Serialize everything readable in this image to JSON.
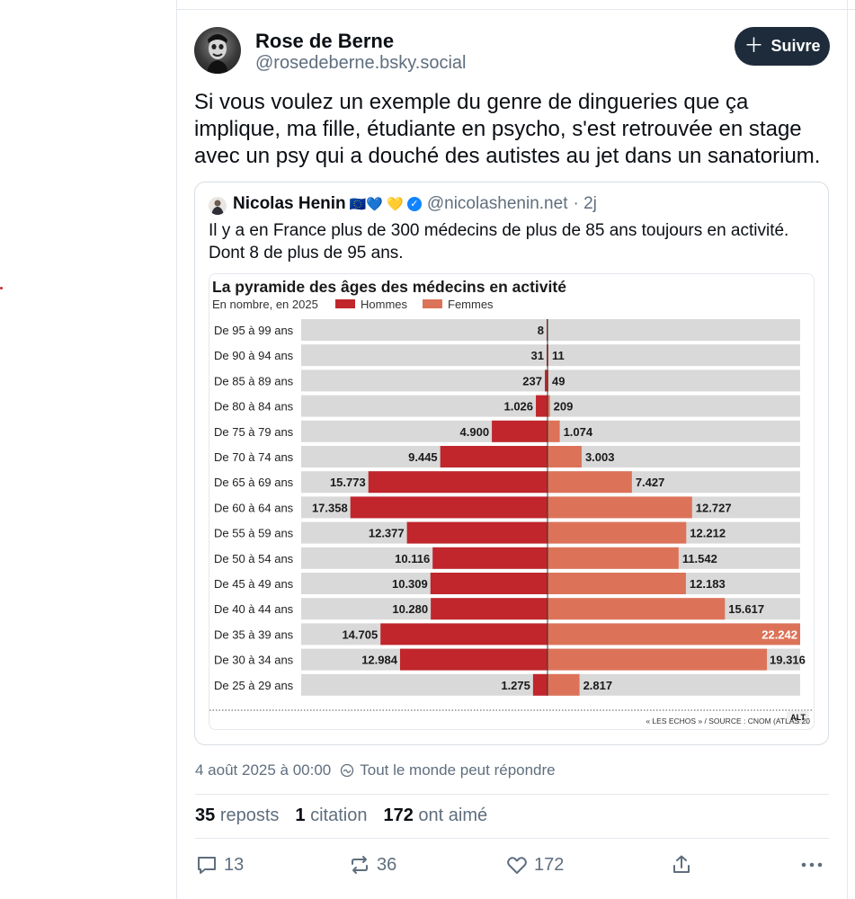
{
  "author": {
    "name": "Rose de Berne",
    "handle": "@rosedeberne.bsky.social",
    "avatar_icon": "avatar-photo"
  },
  "follow_button": {
    "label": "Suivre",
    "icon": "plus-icon"
  },
  "post_text": "Si vous voulez un exemple du genre de dingueries que ça implique, ma fille, étudiante en psycho, s'est retrouvée en stage avec un psy qui a douché des autistes au jet dans un sanatorium.",
  "quote": {
    "name": "Nicolas Henin",
    "emojis": "🇪🇺💙 💛",
    "handle": "@nicolashenin.net",
    "time": "· 2j",
    "text": "Il y a en France plus de 300 médecins de plus de 85 ans toujours en activité. Dont 8 de plus de 95 ans.",
    "alt_badge": "ALT"
  },
  "chart_data": {
    "type": "bar",
    "orientation": "horizontal-pyramid",
    "title": "La pyramide des âges des médecins en activité",
    "subtitle": "En nombre, en 2025",
    "source": "« LES ECHOS » / SOURCE : CNOM (ATLAS 20",
    "categories": [
      "De 95 à 99 ans",
      "De 90 à 94 ans",
      "De 85 à 89 ans",
      "De 80 à 84 ans",
      "De 75 à 79 ans",
      "De 70 à 74 ans",
      "De 65 à 69 ans",
      "De 60 à 64 ans",
      "De 55 à 59 ans",
      "De 50 à 54 ans",
      "De 45 à 49 ans",
      "De 40 à 44 ans",
      "De 35 à 39 ans",
      "De 30 à 34 ans",
      "De 25 à 29 ans"
    ],
    "series": [
      {
        "name": "Hommes",
        "color": "#c0262c",
        "values": [
          8,
          31,
          237,
          1026,
          4900,
          9445,
          15773,
          17358,
          12377,
          10116,
          10309,
          10280,
          14705,
          12984,
          1275
        ],
        "labels": [
          "8",
          "31",
          "237",
          "1.026",
          "4.900",
          "9.445",
          "15.773",
          "17.358",
          "12.377",
          "10.116",
          "10.309",
          "10.280",
          "14.705",
          "12.984",
          "1.275"
        ]
      },
      {
        "name": "Femmes",
        "color": "#dc7359",
        "values": [
          0,
          11,
          49,
          209,
          1074,
          3003,
          7427,
          12727,
          12212,
          11542,
          12183,
          15617,
          22242,
          19316,
          2817
        ],
        "labels": [
          "",
          "11",
          "49",
          "209",
          "1.074",
          "3.003",
          "7.427",
          "12.727",
          "12.212",
          "11.542",
          "12.183",
          "15.617",
          "22.242",
          "19.316",
          "2.817"
        ]
      }
    ],
    "xlim": [
      0,
      22242
    ],
    "row_background": "#d9d9d9"
  },
  "meta": {
    "date": "4 août 2025 à 00:00",
    "reply_setting": "Tout le monde peut répondre"
  },
  "stats": {
    "reposts_count": "35",
    "reposts_label": "reposts",
    "quotes_count": "1",
    "quotes_label": "citation",
    "likes_count": "172",
    "likes_label": "ont aimé"
  },
  "actions": {
    "replies": "13",
    "reposts": "36",
    "likes": "172"
  }
}
